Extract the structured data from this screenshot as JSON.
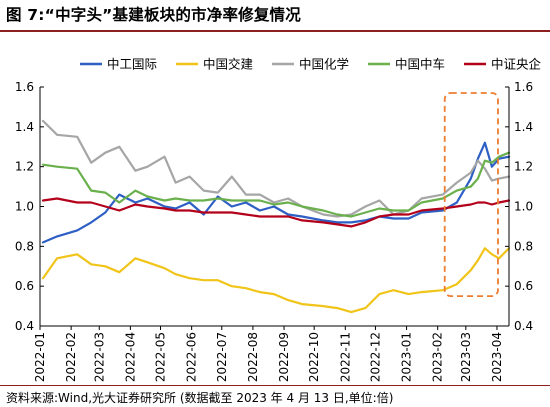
{
  "title": "图 7:“中字头”基建板块的市净率修复情况",
  "source": "资料来源:Wind,光大证券研究所 (数据截至 2023 年 4 月 13 日,单位:倍)",
  "chart_data": {
    "type": "line",
    "ylim": [
      0.4,
      1.6
    ],
    "yticks": [
      "0.4",
      "0.6",
      "0.8",
      "1.0",
      "1.2",
      "1.4",
      "1.6"
    ],
    "right_yticks": [
      "0.4",
      "0.6",
      "0.8",
      "1.0",
      "1.2",
      "1.4",
      "1.6"
    ],
    "xticks": [
      "2022-01",
      "2022-02",
      "2022-03",
      "2022-04",
      "2022-05",
      "2022-06",
      "2022-07",
      "2022-08",
      "2022-09",
      "2022-10",
      "2022-11",
      "2022-12",
      "2023-01",
      "2023-02",
      "2023-03",
      "2023-04"
    ],
    "legend_position": "top",
    "grid": false,
    "x": [
      "2022-01-04",
      "2022-01-18",
      "2022-02-07",
      "2022-02-21",
      "2022-03-07",
      "2022-03-21",
      "2022-04-06",
      "2022-04-18",
      "2022-05-05",
      "2022-05-16",
      "2022-05-30",
      "2022-06-13",
      "2022-06-27",
      "2022-07-11",
      "2022-07-25",
      "2022-08-08",
      "2022-08-22",
      "2022-09-05",
      "2022-09-19",
      "2022-10-10",
      "2022-10-24",
      "2022-11-07",
      "2022-11-21",
      "2022-12-05",
      "2022-12-19",
      "2023-01-03",
      "2023-01-16",
      "2023-02-06",
      "2023-02-20",
      "2023-03-06",
      "2023-03-13",
      "2023-03-20",
      "2023-03-27",
      "2023-04-03",
      "2023-04-13"
    ],
    "series": [
      {
        "name": "中工国际",
        "color": "#2e5fc4",
        "values": [
          0.82,
          0.85,
          0.88,
          0.92,
          0.97,
          1.06,
          1.02,
          1.04,
          1.0,
          0.99,
          1.02,
          0.96,
          1.05,
          1.0,
          1.02,
          0.98,
          1.0,
          0.96,
          0.95,
          0.93,
          0.92,
          0.92,
          0.93,
          0.95,
          0.94,
          0.94,
          0.97,
          0.98,
          1.02,
          1.14,
          1.24,
          1.32,
          1.2,
          1.24,
          1.25
        ]
      },
      {
        "name": "中国交建",
        "color": "#f0c419",
        "values": [
          0.64,
          0.74,
          0.76,
          0.71,
          0.7,
          0.67,
          0.74,
          0.72,
          0.69,
          0.66,
          0.64,
          0.63,
          0.63,
          0.6,
          0.59,
          0.57,
          0.56,
          0.53,
          0.51,
          0.5,
          0.49,
          0.47,
          0.49,
          0.56,
          0.58,
          0.56,
          0.57,
          0.58,
          0.61,
          0.68,
          0.73,
          0.79,
          0.76,
          0.74,
          0.79
        ]
      },
      {
        "name": "中国化学",
        "color": "#a6a6a6",
        "values": [
          1.43,
          1.36,
          1.35,
          1.22,
          1.27,
          1.3,
          1.18,
          1.2,
          1.25,
          1.12,
          1.15,
          1.08,
          1.07,
          1.15,
          1.06,
          1.06,
          1.02,
          1.04,
          1.0,
          0.96,
          0.95,
          0.96,
          1.0,
          1.03,
          0.96,
          0.98,
          1.04,
          1.06,
          1.12,
          1.17,
          1.23,
          1.19,
          1.13,
          1.14,
          1.15
        ]
      },
      {
        "name": "中国中车",
        "color": "#6ab04c",
        "values": [
          1.21,
          1.2,
          1.19,
          1.08,
          1.07,
          1.02,
          1.08,
          1.05,
          1.03,
          1.04,
          1.03,
          1.03,
          1.04,
          1.03,
          1.03,
          1.03,
          1.01,
          1.02,
          1.0,
          0.98,
          0.96,
          0.95,
          0.97,
          0.99,
          0.98,
          0.98,
          1.02,
          1.04,
          1.08,
          1.1,
          1.14,
          1.23,
          1.22,
          1.25,
          1.27
        ]
      },
      {
        "name": "中证央企",
        "color": "#b3001b",
        "values": [
          1.03,
          1.04,
          1.02,
          1.02,
          1.0,
          0.98,
          1.01,
          1.0,
          0.99,
          0.98,
          0.98,
          0.97,
          0.97,
          0.97,
          0.96,
          0.95,
          0.95,
          0.95,
          0.93,
          0.92,
          0.91,
          0.9,
          0.92,
          0.95,
          0.96,
          0.96,
          0.98,
          0.99,
          1.0,
          1.01,
          1.02,
          1.02,
          1.01,
          1.02,
          1.03
        ]
      }
    ],
    "annotation": {
      "shape": "dashed-rounded-rect",
      "color": "#ed7d31",
      "x_from": "2023-02-08",
      "x_to": "2023-04-02",
      "y_from": 0.55,
      "y_to": 1.57
    }
  }
}
